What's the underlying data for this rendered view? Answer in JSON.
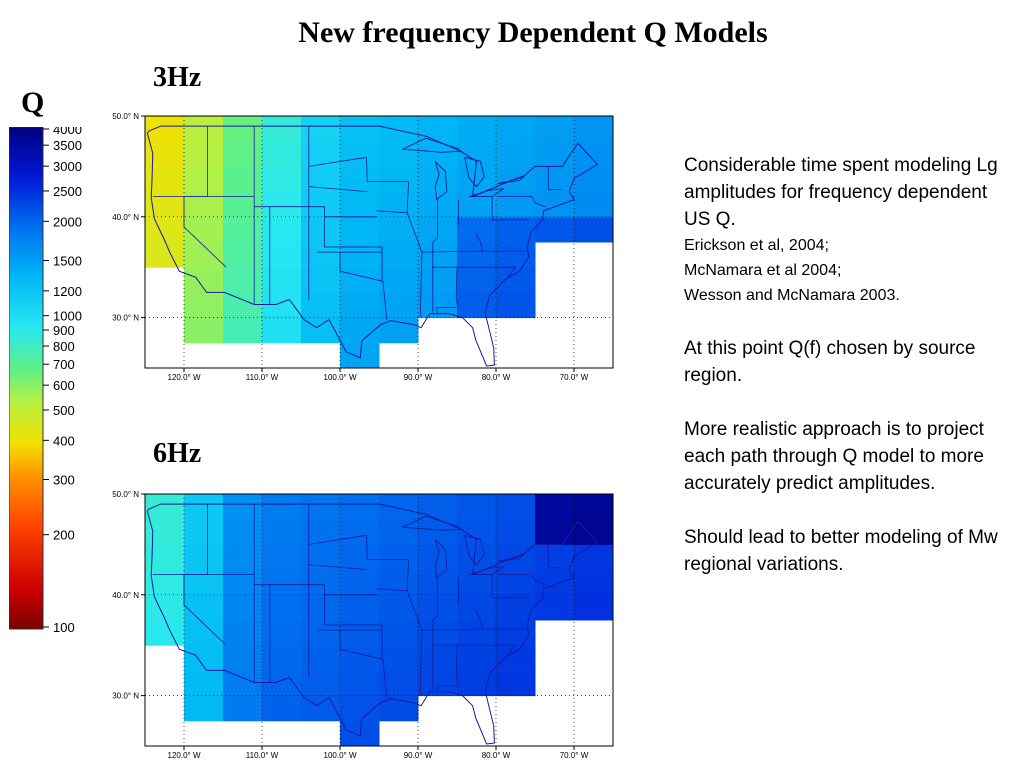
{
  "slide": {
    "title": "New frequency Dependent Q Models",
    "q_label": "Q"
  },
  "colorbar": {
    "ticks": [
      "4000",
      "3500",
      "3000",
      "2500",
      "2000",
      "1500",
      "1200",
      "1000",
      "900",
      "800",
      "700",
      "600",
      "500",
      "400",
      "300",
      "200",
      "100"
    ]
  },
  "maps": [
    {
      "label": "3Hz",
      "lat_ticks": [
        "50.0° N",
        "40.0° N",
        "30.0° N"
      ],
      "lon_ticks": [
        "120.0° W",
        "110.0° W",
        "100.0° W",
        "90.0° W",
        "80.0° W",
        "70.0° W"
      ]
    },
    {
      "label": "6Hz",
      "lat_ticks": [
        "50.0° N",
        "40.0° N",
        "30.0° N"
      ],
      "lon_ticks": [
        "120.0° W",
        "110.0° W",
        "100.0° W",
        "90.0° W",
        "80.0° W",
        "70.0° W"
      ]
    }
  ],
  "notes": {
    "p1": "Considerable time spent modeling Lg amplitudes for frequency dependent US Q.",
    "ref1": "Erickson et al, 2004;",
    "ref2": "McNamara et al 2004;",
    "ref3": "Wesson and McNamara 2003.",
    "p2": "At this point Q(f) chosen by source region.",
    "p3": "More realistic approach is to project each path through Q model to more accurately predict amplitudes.",
    "p4": "Should lead to better modeling of Mw regional variations."
  },
  "colors": {
    "q100": "#7a0000",
    "q400": "#f2e000",
    "q1000": "#27e8f2",
    "q4000": "#000080"
  }
}
